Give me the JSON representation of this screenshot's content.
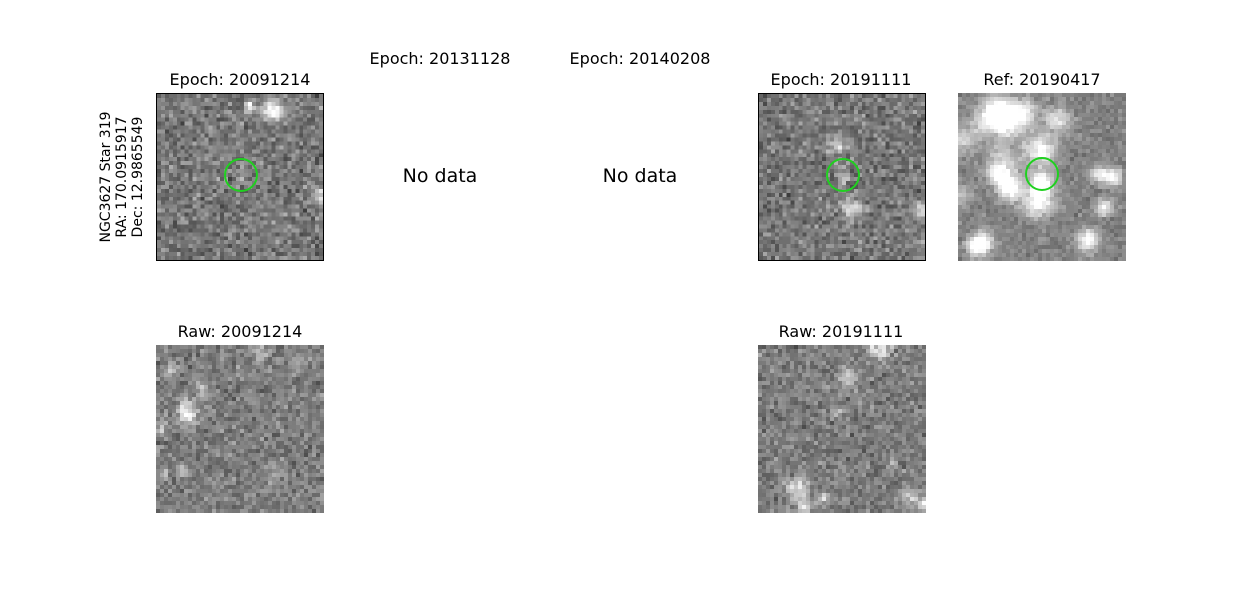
{
  "figure": {
    "star_label": {
      "name": "NGC3627 Star 319",
      "ra": "RA: 170.0915917",
      "dec": "Dec: 12.9865549"
    },
    "epochs": [
      {
        "title": "Epoch: 20091214",
        "status": "image",
        "marker": "green-circle"
      },
      {
        "title": "Epoch: 20131128",
        "status": "No data"
      },
      {
        "title": "Epoch: 20140208",
        "status": "No data"
      },
      {
        "title": "Epoch: 20191111",
        "status": "image",
        "marker": "green-circle"
      }
    ],
    "reference": {
      "title": "Ref: 20190417",
      "marker": "green-circle"
    },
    "raw": [
      {
        "title": "Raw: 20091214"
      },
      {
        "title": "Raw: 20191111"
      }
    ],
    "colors": {
      "marker": "#1fd11f",
      "frame": "#000000"
    }
  }
}
